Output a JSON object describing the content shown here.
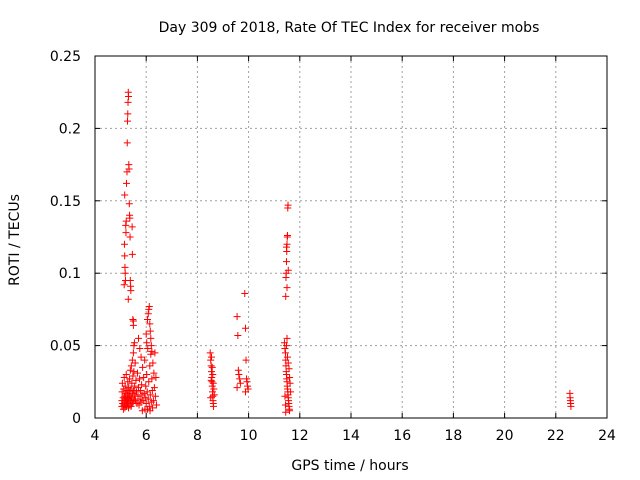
{
  "chart_data": {
    "type": "scatter",
    "title": "Day 309 of 2018, Rate Of TEC Index for receiver mobs",
    "xlabel": "GPS time / hours",
    "ylabel": "ROTI / TECUs",
    "xlim": [
      4,
      24
    ],
    "ylim": [
      0,
      0.25
    ],
    "xticks": [
      4,
      6,
      8,
      10,
      12,
      14,
      16,
      18,
      20,
      22,
      24
    ],
    "yticks": [
      0,
      0.05,
      0.1,
      0.15,
      0.2,
      0.25
    ],
    "xtick_labels": [
      "4",
      "6",
      "8",
      "10",
      "12",
      "14",
      "16",
      "18",
      "20",
      "22",
      "24"
    ],
    "ytick_labels": [
      "0",
      "0.05",
      "0.1",
      "0.15",
      "0.2",
      "0.25"
    ],
    "grid": true,
    "marker": "+",
    "color": "#ff0000",
    "series": [
      {
        "points": [
          [
            5.05,
            0.008
          ],
          [
            5.05,
            0.012
          ],
          [
            5.06,
            0.018
          ],
          [
            5.07,
            0.024
          ],
          [
            5.08,
            0.01
          ],
          [
            5.1,
            0.014
          ],
          [
            5.11,
            0.006
          ],
          [
            5.12,
            0.02
          ],
          [
            5.13,
            0.009
          ],
          [
            5.14,
            0.028
          ],
          [
            5.15,
            0.015
          ],
          [
            5.16,
            0.011
          ],
          [
            5.17,
            0.007
          ],
          [
            5.18,
            0.022
          ],
          [
            5.19,
            0.013
          ],
          [
            5.2,
            0.017
          ],
          [
            5.21,
            0.009
          ],
          [
            5.22,
            0.03
          ],
          [
            5.23,
            0.012
          ],
          [
            5.24,
            0.008
          ],
          [
            5.25,
            0.019
          ],
          [
            5.26,
            0.014
          ],
          [
            5.27,
            0.01
          ],
          [
            5.28,
            0.025
          ],
          [
            5.29,
            0.016
          ],
          [
            5.3,
            0.011
          ],
          [
            5.31,
            0.007
          ],
          [
            5.32,
            0.021
          ],
          [
            5.33,
            0.013
          ],
          [
            5.34,
            0.018
          ],
          [
            5.35,
            0.027
          ],
          [
            5.36,
            0.009
          ],
          [
            5.37,
            0.015
          ],
          [
            5.38,
            0.033
          ],
          [
            5.39,
            0.012
          ],
          [
            5.4,
            0.02
          ],
          [
            5.41,
            0.008
          ],
          [
            5.42,
            0.036
          ],
          [
            5.43,
            0.014
          ],
          [
            5.44,
            0.024
          ],
          [
            5.45,
            0.01
          ],
          [
            5.46,
            0.04
          ],
          [
            5.47,
            0.017
          ],
          [
            5.48,
            0.029
          ],
          [
            5.49,
            0.011
          ],
          [
            5.5,
            0.045
          ],
          [
            5.51,
            0.019
          ],
          [
            5.52,
            0.032
          ],
          [
            5.53,
            0.013
          ],
          [
            5.54,
            0.052
          ],
          [
            5.55,
            0.022
          ],
          [
            5.56,
            0.016
          ],
          [
            5.57,
            0.038
          ],
          [
            5.58,
            0.012
          ],
          [
            5.6,
            0.026
          ],
          [
            5.62,
            0.018
          ],
          [
            5.64,
            0.01
          ],
          [
            5.66,
            0.031
          ],
          [
            5.68,
            0.015
          ],
          [
            5.7,
            0.021
          ],
          [
            5.72,
            0.009
          ],
          [
            5.74,
            0.027
          ],
          [
            5.76,
            0.013
          ],
          [
            5.78,
            0.019
          ],
          [
            5.8,
            0.011
          ],
          [
            5.82,
            0.023
          ],
          [
            5.84,
            0.016
          ],
          [
            5.86,
            0.035
          ],
          [
            5.88,
            0.012
          ],
          [
            5.9,
            0.028
          ],
          [
            5.92,
            0.017
          ],
          [
            5.94,
            0.04
          ],
          [
            5.96,
            0.014
          ],
          [
            5.98,
            0.022
          ],
          [
            6.0,
            0.01
          ],
          [
            6.02,
            0.03
          ],
          [
            6.04,
            0.018
          ],
          [
            6.06,
            0.048
          ],
          [
            6.08,
            0.013
          ],
          [
            6.1,
            0.025
          ],
          [
            6.12,
            0.008
          ],
          [
            6.14,
            0.036
          ],
          [
            6.16,
            0.016
          ],
          [
            6.18,
            0.044
          ],
          [
            6.2,
            0.011
          ],
          [
            6.22,
            0.027
          ],
          [
            6.24,
            0.019
          ],
          [
            6.26,
            0.038
          ],
          [
            6.28,
            0.012
          ],
          [
            6.3,
            0.031
          ],
          [
            6.32,
            0.021
          ],
          [
            6.34,
            0.045
          ],
          [
            6.36,
            0.015
          ],
          [
            6.38,
            0.028
          ],
          [
            6.4,
            0.009
          ],
          [
            6.05,
            0.006
          ],
          [
            6.15,
            0.005
          ],
          [
            6.25,
            0.007
          ],
          [
            5.95,
            0.006
          ],
          [
            5.85,
            0.005
          ],
          [
            5.15,
            0.12
          ],
          [
            5.16,
            0.112
          ],
          [
            5.17,
            0.104
          ],
          [
            5.18,
            0.1
          ],
          [
            5.19,
            0.095
          ],
          [
            5.2,
            0.133
          ],
          [
            5.21,
            0.128
          ],
          [
            5.22,
            0.136
          ],
          [
            5.14,
            0.092
          ],
          [
            5.16,
            0.154
          ],
          [
            5.23,
            0.162
          ],
          [
            5.25,
            0.17
          ],
          [
            5.26,
            0.19
          ],
          [
            5.27,
            0.205
          ],
          [
            5.28,
            0.21
          ],
          [
            5.29,
            0.218
          ],
          [
            5.3,
            0.225
          ],
          [
            5.31,
            0.222
          ],
          [
            5.32,
            0.175
          ],
          [
            5.33,
            0.172
          ],
          [
            5.34,
            0.148
          ],
          [
            5.35,
            0.14
          ],
          [
            5.36,
            0.138
          ],
          [
            5.37,
            0.125
          ],
          [
            5.38,
            0.095
          ],
          [
            5.39,
            0.091
          ],
          [
            5.4,
            0.088
          ],
          [
            5.3,
            0.082
          ],
          [
            5.45,
            0.132
          ],
          [
            5.46,
            0.113
          ],
          [
            5.48,
            0.068
          ],
          [
            5.5,
            0.067
          ],
          [
            5.52,
            0.05
          ],
          [
            5.5,
            0.064
          ],
          [
            5.7,
            0.055
          ],
          [
            5.75,
            0.048
          ],
          [
            5.8,
            0.042
          ],
          [
            6.05,
            0.068
          ],
          [
            6.08,
            0.072
          ],
          [
            6.1,
            0.075
          ],
          [
            6.12,
            0.077
          ],
          [
            6.14,
            0.065
          ],
          [
            6.16,
            0.06
          ],
          [
            6.18,
            0.055
          ],
          [
            6.2,
            0.05
          ],
          [
            6.22,
            0.046
          ],
          [
            6.02,
            0.052
          ],
          [
            6.0,
            0.058
          ],
          [
            8.5,
            0.045
          ],
          [
            8.52,
            0.04
          ],
          [
            8.54,
            0.036
          ],
          [
            8.55,
            0.032
          ],
          [
            8.56,
            0.028
          ],
          [
            8.57,
            0.025
          ],
          [
            8.58,
            0.022
          ],
          [
            8.59,
            0.018
          ],
          [
            8.6,
            0.015
          ],
          [
            8.61,
            0.012
          ],
          [
            8.62,
            0.01
          ],
          [
            8.63,
            0.008
          ],
          [
            8.55,
            0.042
          ],
          [
            8.58,
            0.035
          ],
          [
            8.6,
            0.03
          ],
          [
            8.62,
            0.024
          ],
          [
            8.64,
            0.02
          ],
          [
            8.66,
            0.016
          ],
          [
            8.52,
            0.014
          ],
          [
            8.54,
            0.026
          ],
          [
            9.55,
            0.07
          ],
          [
            9.58,
            0.057
          ],
          [
            9.6,
            0.033
          ],
          [
            9.62,
            0.03
          ],
          [
            9.65,
            0.027
          ],
          [
            9.68,
            0.024
          ],
          [
            9.55,
            0.021
          ],
          [
            9.85,
            0.086
          ],
          [
            9.88,
            0.062
          ],
          [
            9.9,
            0.04
          ],
          [
            9.92,
            0.027
          ],
          [
            9.94,
            0.025
          ],
          [
            9.96,
            0.022
          ],
          [
            9.98,
            0.02
          ],
          [
            9.88,
            0.018
          ],
          [
            11.4,
            0.052
          ],
          [
            11.42,
            0.048
          ],
          [
            11.44,
            0.045
          ],
          [
            11.45,
            0.04
          ],
          [
            11.46,
            0.036
          ],
          [
            11.47,
            0.032
          ],
          [
            11.48,
            0.03
          ],
          [
            11.49,
            0.027
          ],
          [
            11.5,
            0.025
          ],
          [
            11.51,
            0.022
          ],
          [
            11.52,
            0.02
          ],
          [
            11.53,
            0.018
          ],
          [
            11.54,
            0.016
          ],
          [
            11.55,
            0.014
          ],
          [
            11.56,
            0.012
          ],
          [
            11.57,
            0.01
          ],
          [
            11.58,
            0.008
          ],
          [
            11.59,
            0.006
          ],
          [
            11.6,
            0.005
          ],
          [
            11.45,
            0.004
          ],
          [
            11.48,
            0.05
          ],
          [
            11.5,
            0.055
          ],
          [
            11.52,
            0.042
          ],
          [
            11.55,
            0.038
          ],
          [
            11.58,
            0.034
          ],
          [
            11.6,
            0.028
          ],
          [
            11.62,
            0.024
          ],
          [
            11.64,
            0.018
          ],
          [
            11.42,
            0.015
          ],
          [
            11.44,
            0.009
          ],
          [
            11.45,
            0.084
          ],
          [
            11.46,
            0.097
          ],
          [
            11.47,
            0.1
          ],
          [
            11.48,
            0.108
          ],
          [
            11.49,
            0.115
          ],
          [
            11.5,
            0.12
          ],
          [
            11.51,
            0.125
          ],
          [
            11.52,
            0.126
          ],
          [
            11.53,
            0.145
          ],
          [
            11.54,
            0.147
          ],
          [
            11.5,
            0.09
          ],
          [
            11.55,
            0.102
          ],
          [
            11.48,
            0.118
          ],
          [
            22.55,
            0.017
          ],
          [
            22.56,
            0.014
          ],
          [
            22.57,
            0.012
          ],
          [
            22.58,
            0.01
          ],
          [
            22.59,
            0.008
          ]
        ]
      }
    ]
  }
}
